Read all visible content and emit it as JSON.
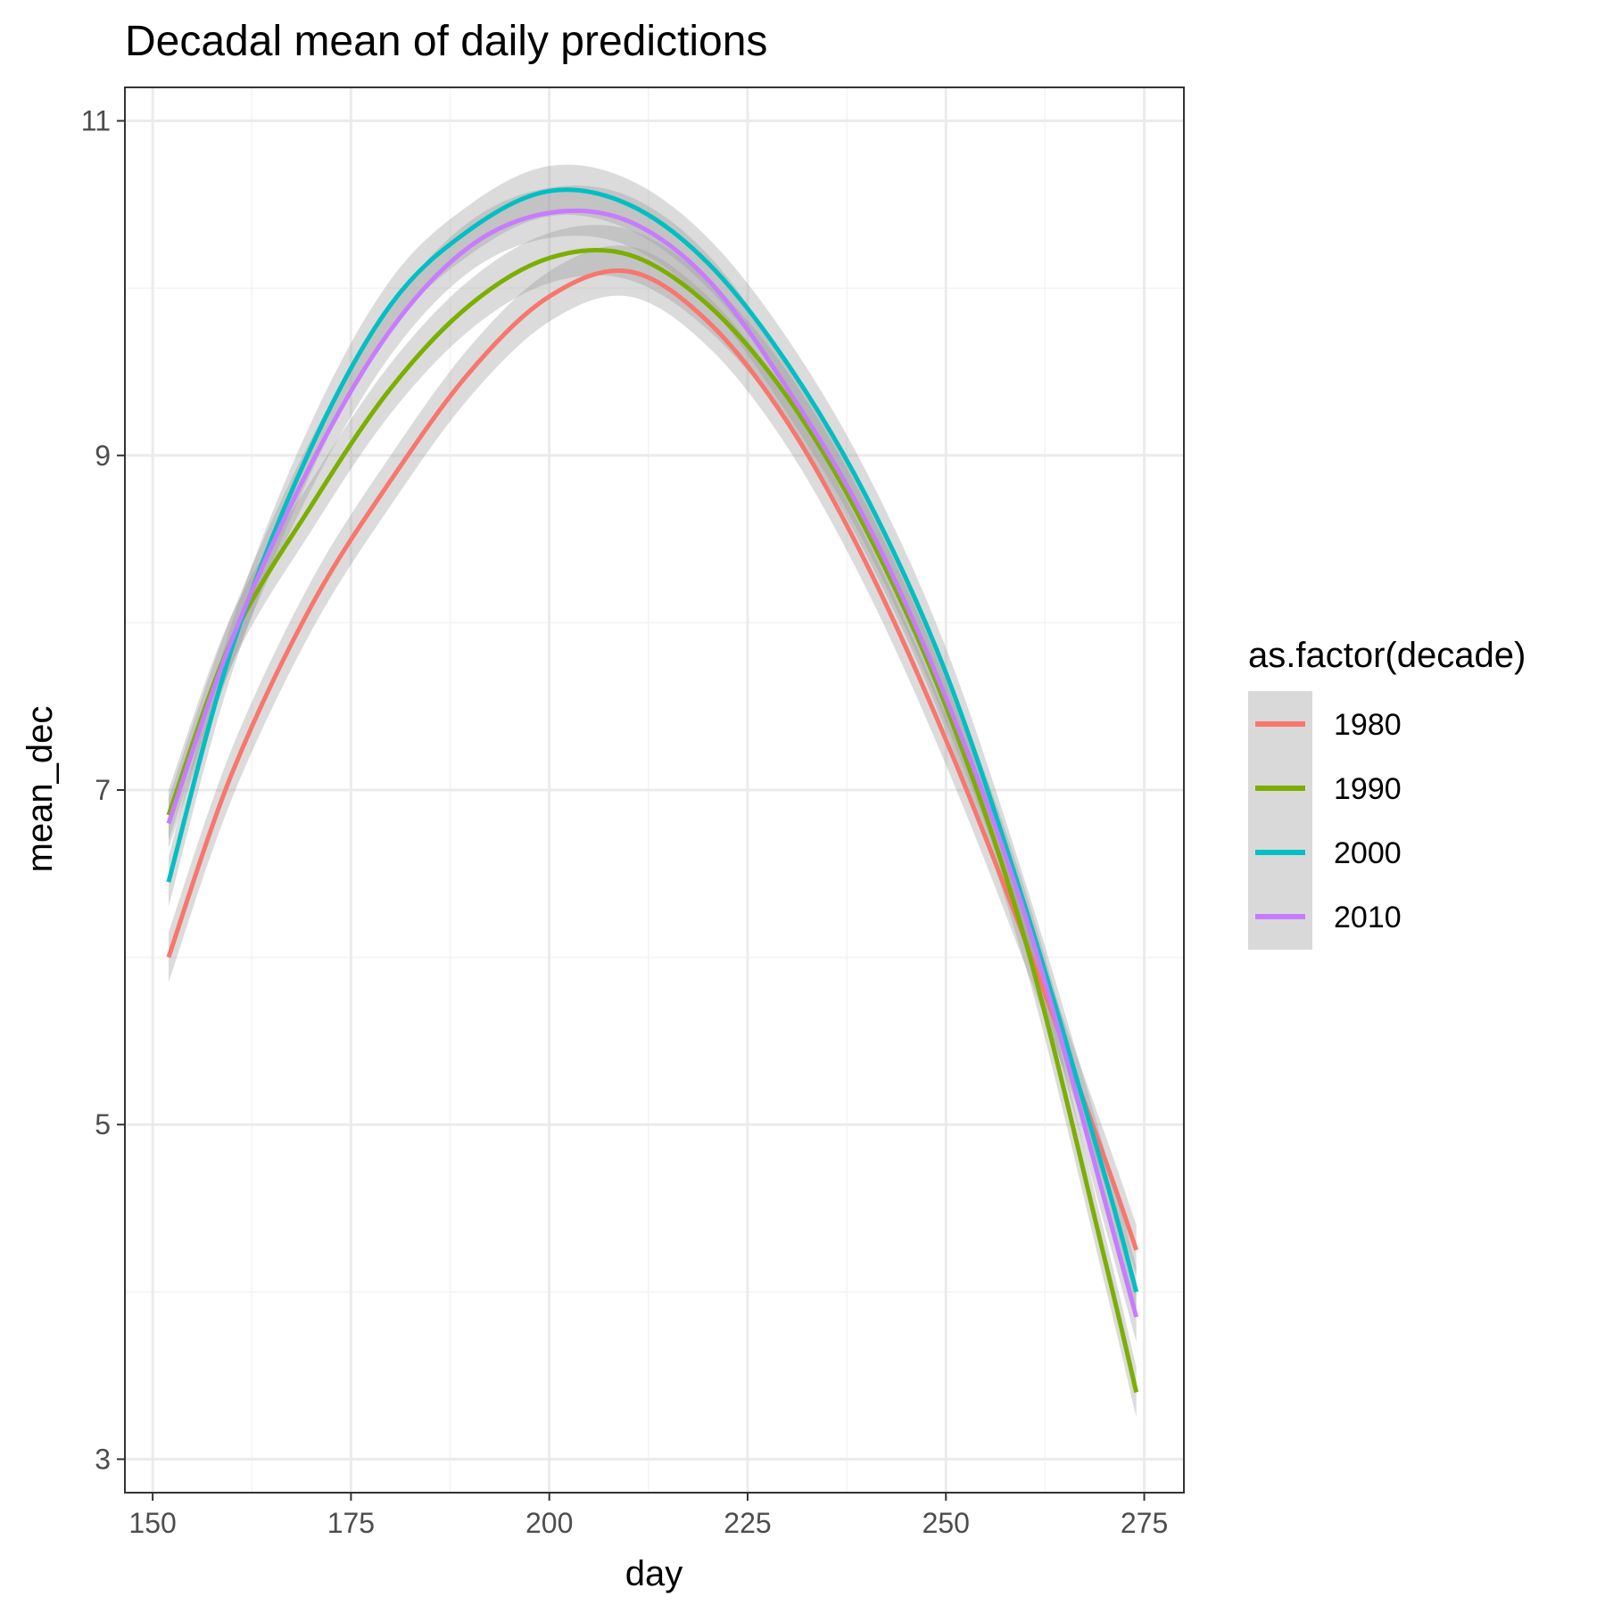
{
  "chart_data": {
    "type": "line",
    "title": "Decadal mean of daily predictions",
    "xlabel": "day",
    "ylabel": "mean_dec",
    "xlim": [
      146.5,
      280
    ],
    "ylim": [
      2.8,
      11.2
    ],
    "x_ticks": [
      150,
      175,
      200,
      225,
      250,
      275
    ],
    "y_ticks": [
      3,
      5,
      7,
      9,
      11
    ],
    "grid": true,
    "legend": {
      "title": "as.factor(decade)",
      "position": "right"
    },
    "series": [
      {
        "name": "1980",
        "color": "#F8766D",
        "x": [
          152,
          160,
          170,
          180,
          190,
          200,
          210,
          220,
          230,
          240,
          250,
          260,
          270,
          274
        ],
        "y": [
          6.0,
          7.1,
          8.1,
          8.85,
          9.5,
          9.95,
          10.1,
          9.8,
          9.2,
          8.35,
          7.3,
          6.1,
          4.8,
          4.25
        ],
        "ci_half_width": 0.15
      },
      {
        "name": "1990",
        "color": "#7CAE00",
        "x": [
          152,
          160,
          170,
          180,
          190,
          200,
          210,
          220,
          230,
          240,
          250,
          260,
          270,
          274
        ],
        "y": [
          6.85,
          7.9,
          8.7,
          9.4,
          9.9,
          10.18,
          10.2,
          9.9,
          9.35,
          8.55,
          7.5,
          6.1,
          4.2,
          3.4
        ],
        "ci_half_width": 0.15
      },
      {
        "name": "2000",
        "color": "#00BFC4",
        "x": [
          152,
          160,
          170,
          180,
          190,
          200,
          210,
          220,
          230,
          240,
          250,
          260,
          270,
          274
        ],
        "y": [
          6.45,
          7.85,
          9.05,
          9.9,
          10.35,
          10.58,
          10.5,
          10.15,
          9.55,
          8.75,
          7.7,
          6.3,
          4.7,
          4.0
        ],
        "ci_half_width": 0.15
      },
      {
        "name": "2010",
        "color": "#C77CFF",
        "x": [
          152,
          160,
          170,
          180,
          190,
          200,
          210,
          220,
          230,
          240,
          250,
          260,
          270,
          274
        ],
        "y": [
          6.8,
          7.9,
          8.95,
          9.75,
          10.25,
          10.45,
          10.4,
          10.05,
          9.4,
          8.6,
          7.55,
          6.25,
          4.55,
          3.85
        ],
        "ci_half_width": 0.15
      }
    ]
  },
  "styles": {
    "panel_border": "#333333",
    "grid_major": "#ebebeb",
    "grid_minor": "#f3f3f3",
    "ci_fill": "#999999",
    "legend_key_bg": "#d9d9d9"
  }
}
